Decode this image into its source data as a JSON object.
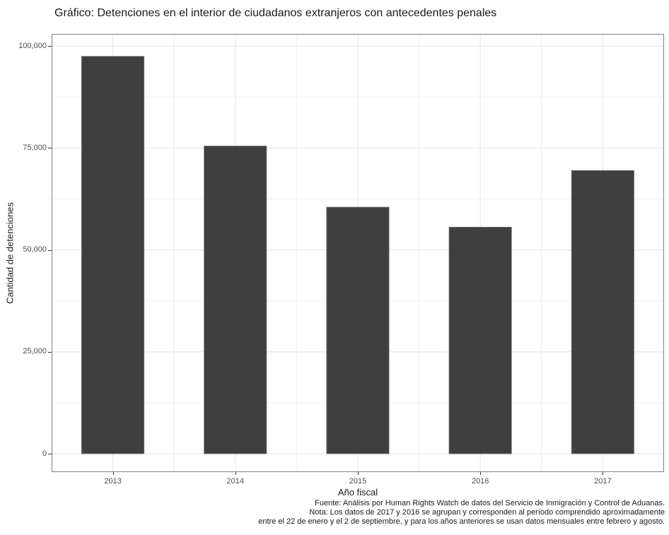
{
  "chart_data": {
    "type": "bar",
    "title": "Gráfico: Detenciones en el interior de ciudadanos extranjeros con antecedentes penales",
    "xlabel": "Año fiscal",
    "ylabel": "Cantidad de detenciones",
    "categories": [
      "2013",
      "2014",
      "2015",
      "2016",
      "2017"
    ],
    "values": [
      97500,
      75500,
      60500,
      55600,
      69500
    ],
    "ylim": [
      0,
      100000
    ],
    "y_ticks": [
      {
        "value": 0,
        "label": "0"
      },
      {
        "value": 25000,
        "label": "25,000"
      },
      {
        "value": 50000,
        "label": "50,000"
      },
      {
        "value": 75000,
        "label": "75,000"
      },
      {
        "value": 100000,
        "label": "100,000"
      }
    ],
    "grid": "on",
    "legend": "none",
    "bar_width_fraction": 0.51,
    "caption_lines": [
      "Fuente: Análisis por Human Rights Watch de datos del Servicio de Inmigración y Control de Aduanas.",
      "Nota: Los datos de 2017 y 2016 se agrupan y corresponden al período comprendido aproximadamente",
      "entre el 22 de enero y el 2 de septiembre, y para los años anteriores se usan datos mensuales entre febrero y agosto."
    ],
    "colors": {
      "bar_fill": "#3f3f3f",
      "bar_edge": "#757575",
      "panel_border": "#7f7f7f",
      "grid_major": "#e3e3e3",
      "grid_minor": "#f0f0f0",
      "tick_mark": "#333333",
      "tick_label": "#4d4d4d",
      "text": "#1a1a1a"
    }
  }
}
